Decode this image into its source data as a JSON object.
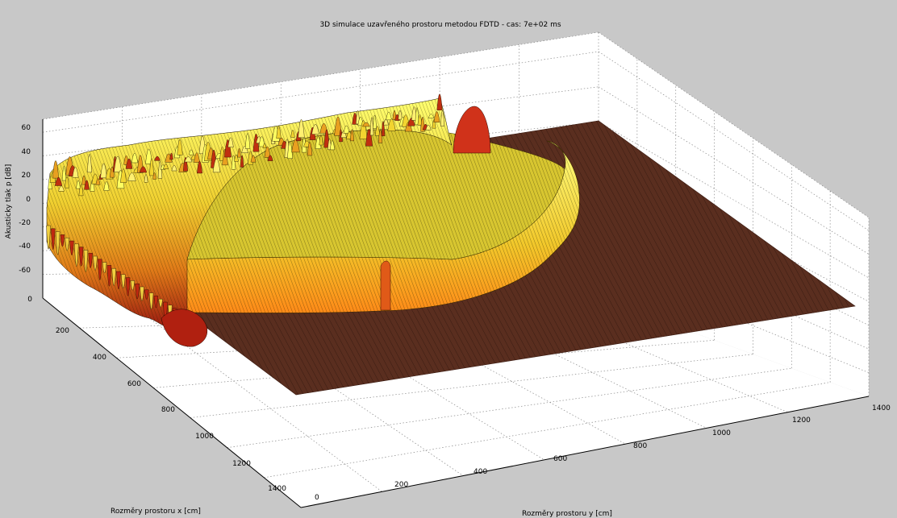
{
  "chart_data": {
    "type": "surface",
    "title": "3D simulace uzavřeného prostoru metodou FDTD - cas: 7e+02 ms",
    "xlabel": "Rozměry prostoru x [cm]",
    "ylabel": "Rozměry prostoru y [cm]",
    "zlabel": "Akusticky tlak p [dB]",
    "xlim": [
      0,
      1400
    ],
    "ylim": [
      0,
      1400
    ],
    "zlim": [
      -80,
      60
    ],
    "x_ticks": [
      "0",
      "200",
      "400",
      "600",
      "800",
      "1000",
      "1200",
      "1400"
    ],
    "y_ticks": [
      "0",
      "200",
      "400",
      "600",
      "800",
      "1000",
      "1200",
      "1400"
    ],
    "z_ticks": [
      "-60",
      "-40",
      "-20",
      "0",
      "20",
      "40",
      "60"
    ],
    "grid": true,
    "colormap": "hot",
    "colors": {
      "background": "#c8c8c8",
      "axes_face": "#ffffff",
      "floor": "#5a2d1e",
      "wave_high": "#ffff55",
      "wave_mid": "#e89a20",
      "wave_low": "#a01810"
    }
  }
}
